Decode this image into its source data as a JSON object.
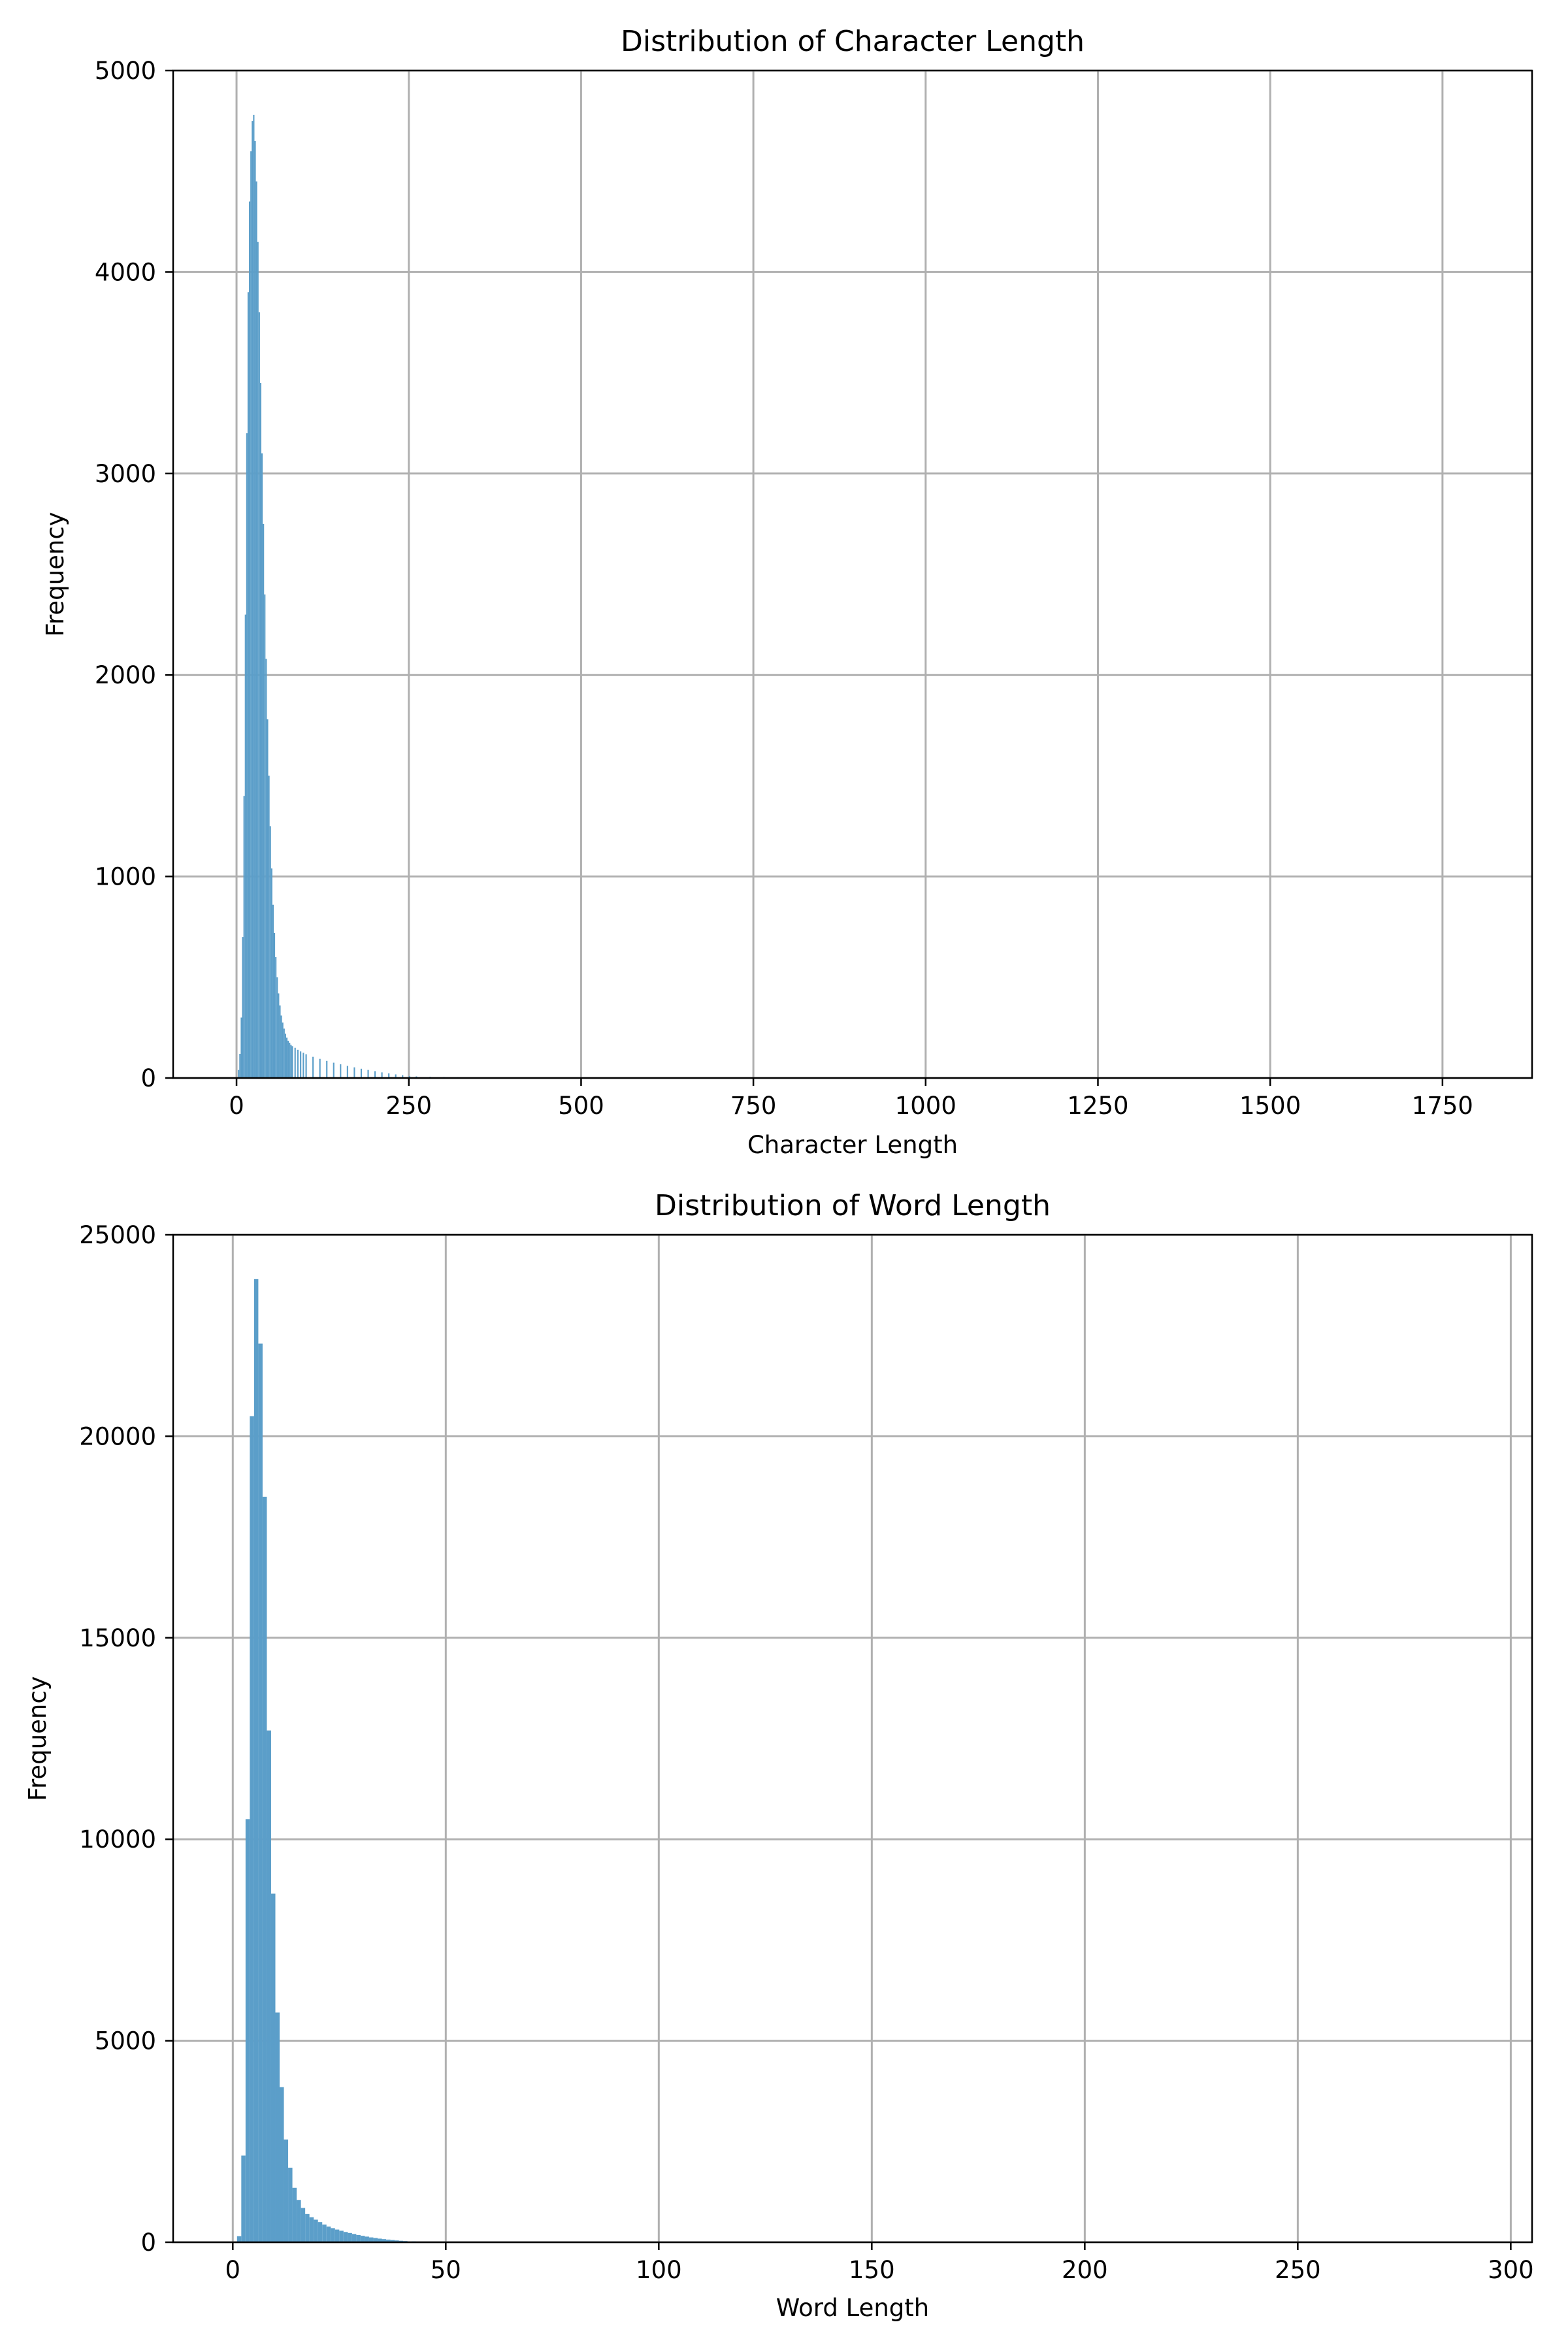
{
  "chart_data": [
    {
      "type": "bar",
      "title": "Distribution of Character Length",
      "xlabel": "Character Length",
      "ylabel": "Frequency",
      "xlim": [
        -92,
        1880
      ],
      "ylim": [
        0,
        5000
      ],
      "xticks": [
        0,
        250,
        500,
        750,
        1000,
        1250,
        1500,
        1750
      ],
      "yticks": [
        0,
        1000,
        2000,
        3000,
        4000,
        5000
      ],
      "xtick_labels": [
        "0",
        "250",
        "500",
        "750",
        "1000",
        "1250",
        "1500",
        "1750"
      ],
      "ytick_labels": [
        "0",
        "1000",
        "2000",
        "3000",
        "4000",
        "5000"
      ],
      "grid": true,
      "color": "#5b9ec9",
      "bin_width": 2,
      "bins": [
        [
          2,
          40
        ],
        [
          4,
          120
        ],
        [
          6,
          300
        ],
        [
          8,
          700
        ],
        [
          10,
          1400
        ],
        [
          12,
          2300
        ],
        [
          14,
          3200
        ],
        [
          16,
          3900
        ],
        [
          18,
          4350
        ],
        [
          20,
          4600
        ],
        [
          22,
          4750
        ],
        [
          24,
          4780
        ],
        [
          26,
          4650
        ],
        [
          28,
          4450
        ],
        [
          30,
          4150
        ],
        [
          32,
          3800
        ],
        [
          34,
          3450
        ],
        [
          36,
          3100
        ],
        [
          38,
          2750
        ],
        [
          40,
          2400
        ],
        [
          42,
          2080
        ],
        [
          44,
          1780
        ],
        [
          46,
          1500
        ],
        [
          48,
          1250
        ],
        [
          50,
          1040
        ],
        [
          52,
          860
        ],
        [
          54,
          720
        ],
        [
          56,
          600
        ],
        [
          58,
          500
        ],
        [
          60,
          420
        ],
        [
          62,
          360
        ],
        [
          64,
          310
        ],
        [
          66,
          275
        ],
        [
          68,
          245
        ],
        [
          70,
          220
        ],
        [
          72,
          200
        ],
        [
          74,
          185
        ],
        [
          76,
          175
        ],
        [
          78,
          165
        ],
        [
          80,
          158
        ],
        [
          84,
          150
        ],
        [
          88,
          140
        ],
        [
          92,
          132
        ],
        [
          96,
          125
        ],
        [
          100,
          118
        ],
        [
          110,
          105
        ],
        [
          120,
          95
        ],
        [
          130,
          85
        ],
        [
          140,
          76
        ],
        [
          150,
          68
        ],
        [
          160,
          60
        ],
        [
          170,
          53
        ],
        [
          180,
          46
        ],
        [
          190,
          40
        ],
        [
          200,
          34
        ],
        [
          210,
          28
        ],
        [
          220,
          23
        ],
        [
          230,
          18
        ],
        [
          240,
          14
        ],
        [
          250,
          10
        ],
        [
          260,
          8
        ],
        [
          280,
          6
        ],
        [
          300,
          5
        ],
        [
          320,
          4
        ],
        [
          340,
          3
        ],
        [
          360,
          2
        ],
        [
          400,
          1
        ]
      ]
    },
    {
      "type": "bar",
      "title": "Distribution of Word Length",
      "xlabel": "Word Length",
      "ylabel": "Frequency",
      "xlim": [
        -14,
        305
      ],
      "ylim": [
        0,
        25000
      ],
      "xticks": [
        0,
        50,
        100,
        150,
        200,
        250,
        300
      ],
      "yticks": [
        0,
        5000,
        10000,
        15000,
        20000,
        25000
      ],
      "xtick_labels": [
        "0",
        "50",
        "100",
        "150",
        "200",
        "250",
        "300"
      ],
      "ytick_labels": [
        "0",
        "5000",
        "10000",
        "15000",
        "20000",
        "25000"
      ],
      "grid": true,
      "color": "#5b9ec9",
      "bin_width": 1,
      "bins": [
        [
          1,
          150
        ],
        [
          2,
          2150
        ],
        [
          3,
          10500
        ],
        [
          4,
          20500
        ],
        [
          5,
          23900
        ],
        [
          6,
          22300
        ],
        [
          7,
          18500
        ],
        [
          8,
          12700
        ],
        [
          9,
          8650
        ],
        [
          10,
          5700
        ],
        [
          11,
          3850
        ],
        [
          12,
          2550
        ],
        [
          13,
          1850
        ],
        [
          14,
          1350
        ],
        [
          15,
          1050
        ],
        [
          16,
          850
        ],
        [
          17,
          700
        ],
        [
          18,
          620
        ],
        [
          19,
          560
        ],
        [
          20,
          500
        ],
        [
          21,
          440
        ],
        [
          22,
          390
        ],
        [
          23,
          350
        ],
        [
          24,
          315
        ],
        [
          25,
          285
        ],
        [
          26,
          255
        ],
        [
          27,
          230
        ],
        [
          28,
          205
        ],
        [
          29,
          180
        ],
        [
          30,
          160
        ],
        [
          31,
          140
        ],
        [
          32,
          120
        ],
        [
          33,
          105
        ],
        [
          34,
          90
        ],
        [
          35,
          78
        ],
        [
          36,
          66
        ],
        [
          37,
          55
        ],
        [
          38,
          45
        ],
        [
          39,
          37
        ],
        [
          40,
          30
        ],
        [
          42,
          22
        ],
        [
          45,
          15
        ],
        [
          48,
          10
        ],
        [
          52,
          6
        ],
        [
          56,
          4
        ],
        [
          60,
          3
        ],
        [
          66,
          2
        ],
        [
          75,
          1
        ]
      ]
    }
  ]
}
